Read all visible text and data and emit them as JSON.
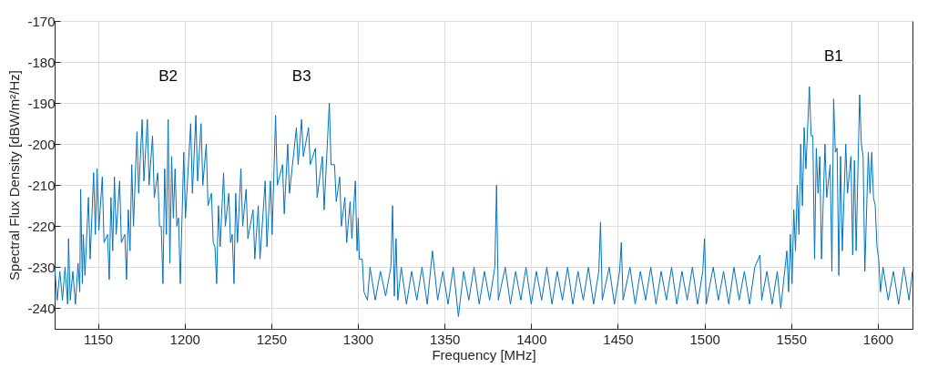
{
  "chart_data": {
    "type": "line",
    "xlabel": "Frequency [MHz]",
    "ylabel": "Spectral Flux Density [dBW/m²/Hz]",
    "xlim": [
      1125,
      1620
    ],
    "xticks": [
      1150,
      1200,
      1250,
      1300,
      1350,
      1400,
      1450,
      1500,
      1550,
      1600
    ],
    "ylim": [
      -245,
      -170
    ],
    "yticks": [
      -240,
      -230,
      -220,
      -210,
      -200,
      -190,
      -180,
      -170
    ],
    "grid": true,
    "marker": "none",
    "line_style": "solid",
    "annotations": [
      {
        "text": "B2",
        "x": 1190.5,
        "y": -194
      },
      {
        "text": "B3",
        "x": 1267.5,
        "y": -194
      },
      {
        "text": "B1",
        "x": 1574.5,
        "y": -189
      }
    ],
    "series": [
      {
        "color": "#0072bd",
        "x": [
          1125,
          1126.5,
          1128,
          1129.5,
          1131,
          1132.5,
          1133,
          1134,
          1135.5,
          1137,
          1138.5,
          1139.5,
          1140,
          1141,
          1141.5,
          1142.5,
          1144.5,
          1145.5,
          1147.5,
          1148.5,
          1149.5,
          1150.5,
          1152.5,
          1153.5,
          1155.5,
          1156.5,
          1157.5,
          1158.5,
          1159.5,
          1160.5,
          1162.5,
          1163.5,
          1165.5,
          1166.5,
          1167.5,
          1168.5,
          1169.5,
          1170.5,
          1172.5,
          1173.5,
          1175.5,
          1176.5,
          1178.5,
          1179.5,
          1181.5,
          1182.5,
          1184.5,
          1185.5,
          1186.5,
          1187.5,
          1188.5,
          1189.5,
          1190.5,
          1191.5,
          1192.5,
          1193.5,
          1194.5,
          1195.5,
          1196.5,
          1197.5,
          1199.5,
          1200.5,
          1203.5,
          1204.5,
          1206.5,
          1207.5,
          1209.5,
          1210.5,
          1212.5,
          1213.5,
          1215.5,
          1216.5,
          1217.5,
          1218.5,
          1219.5,
          1220.5,
          1222.5,
          1223.5,
          1225.5,
          1226.5,
          1227.5,
          1228.5,
          1229.5,
          1230.5,
          1232.5,
          1233.5,
          1235.5,
          1236.5,
          1239.5,
          1240.5,
          1242.5,
          1243.5,
          1246.5,
          1247.5,
          1249.5,
          1250.5,
          1252.5,
          1253.5,
          1256.5,
          1257.5,
          1259.5,
          1260.5,
          1264.5,
          1265.5,
          1267.5,
          1268.5,
          1271.5,
          1272.5,
          1275.5,
          1276.5,
          1279.5,
          1280.5,
          1283.5,
          1284.5,
          1286.5,
          1287.5,
          1289.5,
          1290.5,
          1292.5,
          1293.5,
          1295.5,
          1296.5,
          1298.5,
          1299.5,
          1300.2,
          1300.8,
          1302.5,
          1303.5,
          1305.5,
          1307,
          1310,
          1313,
          1316,
          1319,
          1320,
          1321,
          1322,
          1323,
          1325,
          1328,
          1331,
          1334,
          1337,
          1340,
          1343,
          1346,
          1349,
          1352,
          1355,
          1358,
          1361,
          1364,
          1367,
          1370,
          1373,
          1376,
          1379,
          1380,
          1381,
          1385,
          1388,
          1391,
          1394,
          1397,
          1400,
          1403,
          1406,
          1409,
          1412,
          1415,
          1418,
          1421,
          1424,
          1427,
          1430,
          1433,
          1436,
          1439,
          1440,
          1441,
          1445,
          1448,
          1451,
          1452,
          1453,
          1457,
          1460,
          1463,
          1466,
          1469,
          1472,
          1475,
          1478,
          1481,
          1484,
          1487,
          1490,
          1493,
          1496,
          1499,
          1500,
          1501,
          1505,
          1508,
          1511,
          1514,
          1517,
          1520,
          1523,
          1526,
          1529,
          1532,
          1533,
          1536,
          1539,
          1542,
          1544,
          1547.5,
          1548.5,
          1549.5,
          1550.5,
          1551.5,
          1552.5,
          1553.5,
          1554.5,
          1555.5,
          1556.5,
          1557.5,
          1558.5,
          1560.5,
          1561.5,
          1562.5,
          1563.5,
          1564.5,
          1565.5,
          1566.5,
          1567.5,
          1569.5,
          1570.5,
          1572.5,
          1573.5,
          1574.5,
          1575.5,
          1576.5,
          1577.5,
          1578.5,
          1579.5,
          1581.5,
          1582.5,
          1584.5,
          1585.5,
          1586.5,
          1587.5,
          1589.5,
          1590.5,
          1591.5,
          1592.5,
          1594.5,
          1595.5,
          1596.5,
          1597.5,
          1598.5,
          1599.5,
          1600.5,
          1601.5,
          1603,
          1606,
          1609,
          1612,
          1615,
          1618,
          1620
        ],
        "values": [
          -230,
          -238,
          -231,
          -238,
          -230,
          -239,
          -223,
          -238,
          -231,
          -239,
          -229,
          -236,
          -211,
          -234,
          -222,
          -232,
          -213,
          -228,
          -207,
          -222,
          -206,
          -221,
          -208,
          -224,
          -222,
          -233,
          -213,
          -226,
          -208,
          -222,
          -209,
          -224,
          -222,
          -233,
          -216,
          -226,
          -205,
          -220,
          -197,
          -212,
          -194,
          -209,
          -194,
          -210,
          -198,
          -213,
          -207,
          -220,
          -220,
          -234,
          -206,
          -222,
          -194,
          -229,
          -203,
          -218,
          -206,
          -220,
          -218,
          -234,
          -202,
          -218,
          -195,
          -212,
          -193,
          -209,
          -195,
          -210,
          -200,
          -215,
          -212,
          -224,
          -225,
          -234,
          -215,
          -225,
          -207,
          -220,
          -212,
          -224,
          -222,
          -234,
          -212,
          -224,
          -206,
          -220,
          -211,
          -223,
          -216,
          -228,
          -215,
          -228,
          -209,
          -225,
          -209,
          -222,
          -193,
          -210,
          -205,
          -217,
          -200,
          -212,
          -196,
          -205,
          -194,
          -203,
          -196,
          -205,
          -201,
          -213,
          -203,
          -216,
          -190,
          -205,
          -205,
          -214,
          -208,
          -220,
          -213,
          -224,
          -214,
          -223,
          -209,
          -226,
          -218,
          -228,
          -228,
          -236,
          -238,
          -230,
          -238,
          -231,
          -237,
          -230,
          -215,
          -237,
          -223,
          -238,
          -230,
          -239,
          -231,
          -238,
          -230,
          -239,
          -226,
          -238,
          -231,
          -239,
          -230,
          -242,
          -231,
          -238,
          -230,
          -239,
          -231,
          -238,
          -230,
          -210,
          -238,
          -230,
          -239,
          -231,
          -238,
          -230,
          -239,
          -231,
          -238,
          -230,
          -239,
          -231,
          -238,
          -230,
          -239,
          -231,
          -238,
          -230,
          -239,
          -231,
          -219,
          -238,
          -230,
          -239,
          -231,
          -224,
          -238,
          -230,
          -239,
          -231,
          -238,
          -230,
          -239,
          -231,
          -238,
          -230,
          -239,
          -231,
          -238,
          -230,
          -239,
          -231,
          -223,
          -239,
          -230,
          -238,
          -231,
          -239,
          -230,
          -238,
          -231,
          -239,
          -230,
          -227,
          -238,
          -231,
          -239,
          -231,
          -240,
          -226,
          -236,
          -222,
          -234,
          -216,
          -226,
          -210,
          -222,
          -200,
          -215,
          -196,
          -206,
          -186,
          -198,
          -198,
          -228,
          -201,
          -212,
          -203,
          -228,
          -200,
          -213,
          -205,
          -231,
          -189,
          -202,
          -201,
          -232,
          -203,
          -226,
          -200,
          -212,
          -203,
          -227,
          -204,
          -226,
          -188,
          -200,
          -203,
          -231,
          -202,
          -212,
          -202,
          -213,
          -215,
          -225,
          -228,
          -236,
          -230,
          -238,
          -231,
          -239,
          -230,
          -238,
          -231
        ]
      }
    ]
  }
}
